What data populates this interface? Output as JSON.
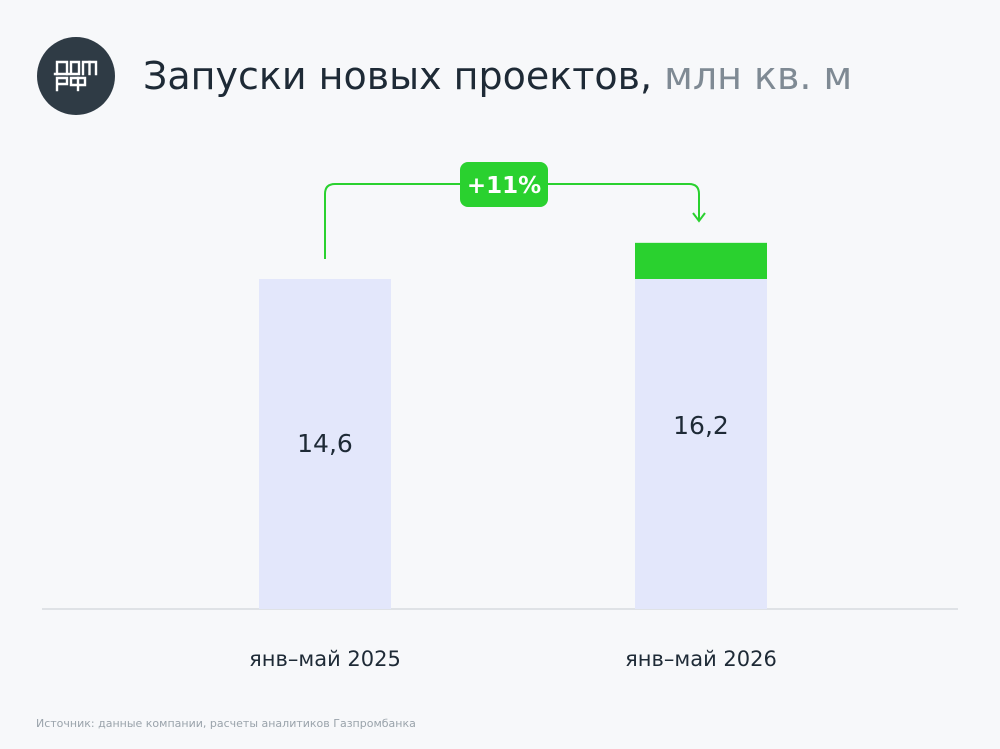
{
  "header": {
    "title": "Запуски новых проектов,",
    "unit": "млн кв. м",
    "logo_text_top": "ДОМ",
    "logo_text_bottom": "РФ"
  },
  "chart_data": {
    "type": "bar",
    "categories": [
      "янв–май 2025",
      "янв–май 2026"
    ],
    "values": [
      14.6,
      16.2
    ],
    "value_labels": [
      "14,6",
      "16,2"
    ],
    "growth_label": "+11%",
    "title": "Запуски новых проектов,",
    "unit": "млн кв. м",
    "grid": false,
    "colors": {
      "bar": "#e3e7fb",
      "increment": "#2ad12f",
      "badge": "#2ad12f",
      "badge_text": "#ffffff",
      "axis": "#c7ccd1",
      "text": "#1e2a36",
      "logo_bg": "#2f3b45"
    }
  },
  "footer": {
    "source": "Источник: данные компании, расчеты аналитиков Газпромбанка"
  }
}
